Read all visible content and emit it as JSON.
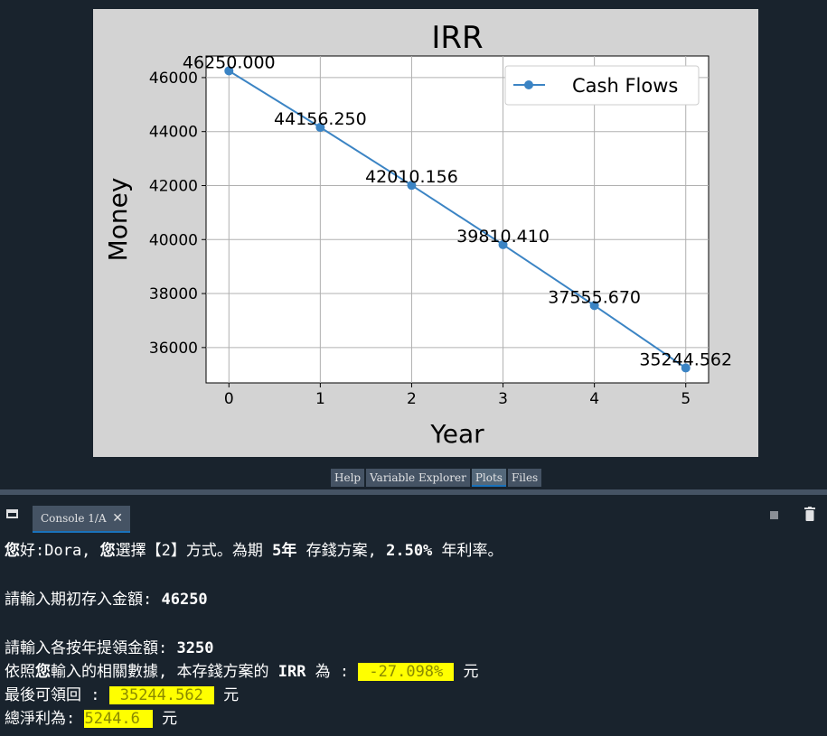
{
  "chart_data": {
    "type": "line",
    "title": "IRR",
    "xlabel": "Year",
    "ylabel": "Money",
    "x": [
      0,
      1,
      2,
      3,
      4,
      5
    ],
    "series": [
      {
        "name": "Cash Flows",
        "values": [
          46250.0,
          44156.25,
          42010.156,
          39810.41,
          37555.67,
          35244.562
        ],
        "labels": [
          "46250.000",
          "44156.250",
          "42010.156",
          "39810.410",
          "37555.670",
          "35244.562"
        ],
        "color": "#3b84c4"
      }
    ],
    "xticks": [
      "0",
      "1",
      "2",
      "3",
      "4",
      "5"
    ],
    "yticks": [
      "36000",
      "38000",
      "40000",
      "42000",
      "44000",
      "46000"
    ],
    "xlim": [
      -0.25,
      5.25
    ],
    "ylim": [
      34690,
      46800
    ],
    "grid": true,
    "legend": "top-right"
  },
  "pane_tabs": [
    "Help",
    "Variable Explorer",
    "Plots",
    "Files"
  ],
  "console_tab": {
    "label": "Console 1/A",
    "close": "✕"
  },
  "console": {
    "line1": {
      "p1": "您",
      "p2": "好:Dora, ",
      "p3": "您",
      "p4": "選擇【2】方式。為期 ",
      "p5": "5年",
      "p6": " 存錢方案, ",
      "p7": "2.50%",
      "p8": " 年利率。"
    },
    "line2": {
      "prompt": "請輸入期初存入金額: ",
      "value": "46250"
    },
    "line3": {
      "prompt": "請輸入各按年提領金額: ",
      "value": "3250"
    },
    "line4": {
      "p1": "依照",
      "p2": "您",
      "p3": "輸入的相關數據, 本存錢方案的 ",
      "p4": "IRR",
      "p5": " 為 : ",
      "value": "-27.098%",
      "unit": " 元"
    },
    "line5": {
      "prompt": "最後可領回 : ",
      "value": "35244.562",
      "unit": " 元"
    },
    "line6": {
      "prompt": "總淨利為: ",
      "value": "5244.6",
      "unit": " 元"
    }
  }
}
